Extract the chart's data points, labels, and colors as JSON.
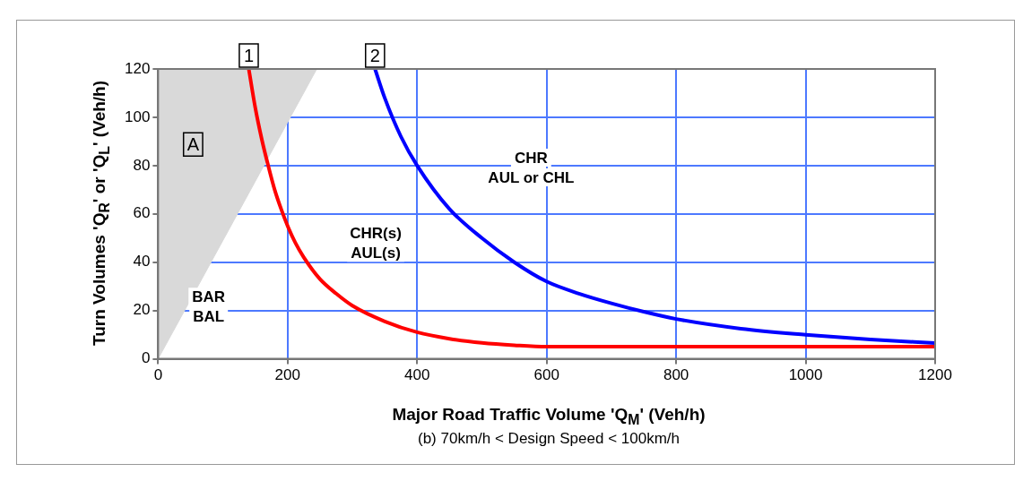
{
  "chart_data": {
    "type": "line",
    "xlabel": "Major Road Traffic Volume 'Q$_{M}$' (Veh/h)",
    "subtitle": "(b) 70km/h < Design Speed < 100km/h",
    "ylabel": "Turn Volumes 'Q$_{R}$' or 'Q$_{L}$' (Veh/h)",
    "xlim": [
      0,
      1200
    ],
    "xticks": [
      0,
      200,
      400,
      600,
      800,
      1000,
      1200
    ],
    "ylim": [
      0,
      120
    ],
    "yticks": [
      0,
      20,
      40,
      60,
      80,
      100,
      120
    ],
    "grid": true,
    "legend": false,
    "marker": "none",
    "line_style": "solid",
    "series": [
      {
        "type": "area",
        "color": "#d9d9d9",
        "x": [
          0,
          245
        ],
        "values": [
          0,
          120
        ]
      },
      {
        "color": "#ff0000",
        "x": [
          140,
          150,
          160,
          170,
          180,
          190,
          200,
          212,
          225,
          250,
          275,
          300,
          350,
          400,
          450,
          500,
          550,
          600,
          1200
        ],
        "values": [
          120,
          104,
          91,
          80,
          70,
          62,
          55,
          48,
          42,
          33,
          27,
          22,
          15.5,
          11,
          8.3,
          6.6,
          5.6,
          5,
          5
        ]
      },
      {
        "color": "#0000ff",
        "x": [
          335,
          350,
          375,
          400,
          450,
          500,
          550,
          600,
          650,
          700,
          750,
          800,
          900,
          1000,
          1100,
          1200
        ],
        "values": [
          120,
          108,
          92,
          80,
          62,
          50,
          40,
          32,
          27,
          23,
          19.5,
          16.5,
          12.5,
          10,
          8,
          6.5
        ]
      }
    ],
    "annotations": [
      {
        "text": "1",
        "x": 140,
        "y": 120
      },
      {
        "text": "2",
        "x": 335,
        "y": 120
      },
      "A",
      "BAR\nBAL",
      "CHR(s)\nAUL(s)",
      "CHR\nAUL or CHL"
    ]
  }
}
